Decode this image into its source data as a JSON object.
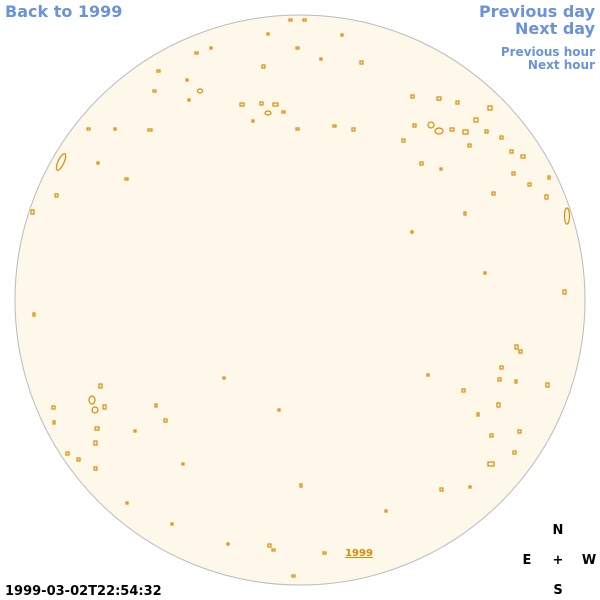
{
  "nav": {
    "back": "Back to 1999",
    "previous_day": "Previous day",
    "next_day": "Next day",
    "previous_hour": "Previous hour",
    "next_hour": "Next hour"
  },
  "disk_link": "1999",
  "timestamp": "1999-03-02T22:54:32",
  "compass": {
    "north": "N",
    "center": "+",
    "east": "E",
    "west": "W",
    "south": "S"
  }
}
